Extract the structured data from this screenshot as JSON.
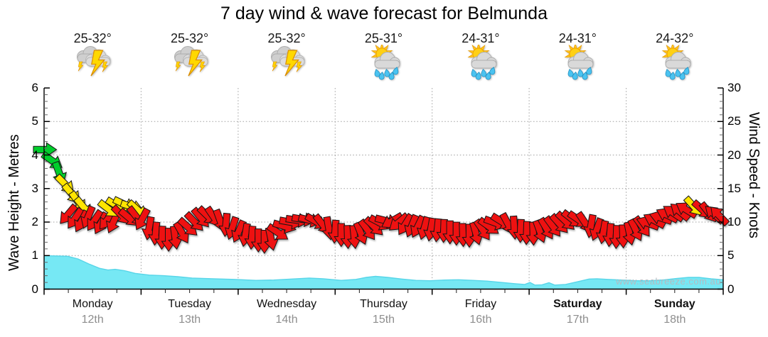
{
  "title": "7 day wind & wave forecast for Belmunda",
  "watermark": "www.seabreeze.com.au",
  "left_axis": {
    "label": "Wave Height - Metres",
    "ticks": [
      0,
      1,
      2,
      3,
      4,
      5,
      6
    ],
    "range": [
      0,
      6
    ]
  },
  "right_axis": {
    "label": "Wind Speed - Knots",
    "ticks": [
      0,
      5,
      10,
      15,
      20,
      25,
      30
    ],
    "range": [
      0,
      30
    ]
  },
  "colors": {
    "wave_fill": "#76E8F4",
    "wave_edge": "#57D5E8",
    "wind_line": "#999999",
    "grid": "#9F9F9F",
    "axis": "#000000",
    "date_grey": "#8E8E8E",
    "watermark_grey": "#B5BBC1",
    "arrow_colors": {
      "g": "#00CE2C",
      "y": "#FFE500",
      "r": "#EE1111"
    }
  },
  "chart_data": {
    "type": "area",
    "x_unit": "hours_from_start",
    "x_range": [
      0,
      168
    ],
    "grid": true,
    "days": [
      {
        "label": "Monday",
        "date": "12th",
        "temp": "25-32°",
        "icon": "storm-icon",
        "bold": false
      },
      {
        "label": "Tuesday",
        "date": "13th",
        "temp": "25-32°",
        "icon": "storm-icon",
        "bold": false
      },
      {
        "label": "Wednesday",
        "date": "14th",
        "temp": "25-32°",
        "icon": "storm-icon",
        "bold": false
      },
      {
        "label": "Thursday",
        "date": "15th",
        "temp": "25-31°",
        "icon": "sun-shower-icon",
        "bold": false
      },
      {
        "label": "Friday",
        "date": "16th",
        "temp": "24-31°",
        "icon": "sun-shower-icon",
        "bold": false
      },
      {
        "label": "Saturday",
        "date": "17th",
        "temp": "24-31°",
        "icon": "sun-shower-icon",
        "bold": true
      },
      {
        "label": "Sunday",
        "date": "18th",
        "temp": "24-32°",
        "icon": "sun-shower-icon",
        "bold": true
      }
    ],
    "wave_height_m": [
      [
        0,
        1.0
      ],
      [
        5.8,
        0.98
      ],
      [
        8.4,
        0.9
      ],
      [
        11.1,
        0.75
      ],
      [
        13.7,
        0.62
      ],
      [
        15.8,
        0.57
      ],
      [
        17.6,
        0.59
      ],
      [
        19.9,
        0.55
      ],
      [
        22.5,
        0.47
      ],
      [
        26,
        0.42
      ],
      [
        29.6,
        0.4
      ],
      [
        33.1,
        0.37
      ],
      [
        36.6,
        0.33
      ],
      [
        41.9,
        0.31
      ],
      [
        47.1,
        0.29
      ],
      [
        52.4,
        0.26
      ],
      [
        56.8,
        0.27
      ],
      [
        61.2,
        0.3
      ],
      [
        65.6,
        0.33
      ],
      [
        69.1,
        0.31
      ],
      [
        73.5,
        0.26
      ],
      [
        77.1,
        0.29
      ],
      [
        79.7,
        0.35
      ],
      [
        82,
        0.38
      ],
      [
        85,
        0.35
      ],
      [
        88.5,
        0.3
      ],
      [
        92,
        0.26
      ],
      [
        95.5,
        0.25
      ],
      [
        99.1,
        0.27
      ],
      [
        102.6,
        0.28
      ],
      [
        106.1,
        0.26
      ],
      [
        109.6,
        0.24
      ],
      [
        113.1,
        0.2
      ],
      [
        116.6,
        0.16
      ],
      [
        118.9,
        0.14
      ],
      [
        120.2,
        0.2
      ],
      [
        121.4,
        0.12
      ],
      [
        123.2,
        0.13
      ],
      [
        124.9,
        0.19
      ],
      [
        126.3,
        0.12
      ],
      [
        129,
        0.14
      ],
      [
        132,
        0.22
      ],
      [
        134.8,
        0.3
      ],
      [
        136.8,
        0.31
      ],
      [
        139.5,
        0.29
      ],
      [
        143,
        0.27
      ],
      [
        146.5,
        0.25
      ],
      [
        150,
        0.25
      ],
      [
        153.6,
        0.28
      ],
      [
        156.6,
        0.32
      ],
      [
        159.4,
        0.35
      ],
      [
        162,
        0.35
      ],
      [
        165,
        0.31
      ],
      [
        168,
        0.28
      ]
    ],
    "wind_speed_knots": [
      [
        0,
        21
      ],
      [
        2,
        19
      ],
      [
        4,
        17
      ],
      [
        6,
        15
      ],
      [
        8,
        13
      ],
      [
        10,
        11.5
      ],
      [
        12,
        10.6
      ],
      [
        14,
        10.2
      ],
      [
        16,
        10.8
      ],
      [
        18,
        11.6
      ],
      [
        20,
        12.2
      ],
      [
        22,
        12.0
      ],
      [
        24,
        11.2
      ],
      [
        26,
        9.6
      ],
      [
        28,
        8.4
      ],
      [
        30,
        7.6
      ],
      [
        32,
        7.8
      ],
      [
        34,
        8.5
      ],
      [
        36,
        9.4
      ],
      [
        38,
        10.3
      ],
      [
        40,
        10.9
      ],
      [
        42,
        10.7
      ],
      [
        44,
        10.2
      ],
      [
        46,
        9.3
      ],
      [
        48,
        8.7
      ],
      [
        50,
        8.2
      ],
      [
        52,
        7.8
      ],
      [
        54,
        7.3
      ],
      [
        56,
        7.5
      ],
      [
        58,
        8.6
      ],
      [
        60,
        9.7
      ],
      [
        62,
        10.2
      ],
      [
        64,
        10.4
      ],
      [
        66,
        10.3
      ],
      [
        68,
        9.9
      ],
      [
        70,
        9.3
      ],
      [
        72,
        8.7
      ],
      [
        74,
        8.1
      ],
      [
        76,
        7.9
      ],
      [
        78,
        8.3
      ],
      [
        80,
        8.9
      ],
      [
        82,
        9.5
      ],
      [
        84,
        10.1
      ],
      [
        86,
        10.2
      ],
      [
        88,
        10.0
      ],
      [
        90,
        9.6
      ],
      [
        92,
        9.4
      ],
      [
        94,
        9.2
      ],
      [
        96,
        9.0
      ],
      [
        98,
        8.9
      ],
      [
        100,
        8.7
      ],
      [
        102,
        8.4
      ],
      [
        104,
        8.2
      ],
      [
        106,
        8.2
      ],
      [
        108,
        8.7
      ],
      [
        110,
        9.4
      ],
      [
        112,
        10.0
      ],
      [
        114,
        9.9
      ],
      [
        116,
        9.4
      ],
      [
        118,
        8.8
      ],
      [
        120,
        8.4
      ],
      [
        122,
        8.6
      ],
      [
        124,
        9.0
      ],
      [
        126,
        9.4
      ],
      [
        128,
        10.0
      ],
      [
        130,
        10.4
      ],
      [
        132,
        10.4
      ],
      [
        134,
        9.9
      ],
      [
        136,
        9.2
      ],
      [
        138,
        8.6
      ],
      [
        140,
        8.2
      ],
      [
        142,
        7.9
      ],
      [
        144,
        8.2
      ],
      [
        146,
        8.8
      ],
      [
        148,
        9.3
      ],
      [
        150,
        9.8
      ],
      [
        152,
        10.4
      ],
      [
        154,
        10.9
      ],
      [
        156,
        11.2
      ],
      [
        158,
        11.5
      ],
      [
        160,
        11.9
      ],
      [
        162,
        12.1
      ],
      [
        164,
        11.7
      ],
      [
        166,
        11.2
      ],
      [
        168,
        10.9
      ]
    ],
    "wind_arrows": [
      [
        0,
        20.8,
        "g",
        0
      ],
      [
        1.9,
        19.2,
        "g",
        35
      ],
      [
        3.7,
        17.4,
        "g",
        70
      ],
      [
        5.1,
        15.7,
        "y",
        45
      ],
      [
        6.7,
        14.3,
        "y",
        50
      ],
      [
        8.3,
        13.1,
        "y",
        55
      ],
      [
        9.7,
        12.3,
        "y",
        50
      ],
      [
        6,
        11.2,
        "r",
        130
      ],
      [
        7.7,
        10.6,
        "r",
        125
      ],
      [
        9.3,
        10.2,
        "r",
        118
      ],
      [
        10.9,
        10.8,
        "r",
        112
      ],
      [
        12.5,
        10.3,
        "r",
        124
      ],
      [
        14.1,
        9.9,
        "r",
        118
      ],
      [
        15.7,
        10.4,
        "r",
        128
      ],
      [
        17.2,
        10.1,
        "r",
        114
      ],
      [
        15.8,
        12.0,
        "y",
        38
      ],
      [
        17.8,
        12.5,
        "y",
        32
      ],
      [
        19.7,
        12.7,
        "y",
        25
      ],
      [
        21.6,
        12.3,
        "y",
        18
      ],
      [
        23,
        11.9,
        "y",
        42
      ],
      [
        19,
        11.1,
        "r",
        46
      ],
      [
        20.9,
        10.7,
        "r",
        40
      ],
      [
        22.7,
        10.9,
        "r",
        52
      ],
      [
        24.3,
        10.5,
        "r",
        118
      ],
      [
        26,
        9.2,
        "r",
        100
      ],
      [
        27.6,
        8.4,
        "r",
        95
      ],
      [
        29.2,
        7.8,
        "r",
        92
      ],
      [
        30.8,
        7.5,
        "r",
        90
      ],
      [
        32.4,
        7.8,
        "r",
        82
      ],
      [
        34,
        8.5,
        "r",
        60
      ],
      [
        35.5,
        9.3,
        "r",
        42
      ],
      [
        37.1,
        10.1,
        "r",
        46
      ],
      [
        38.7,
        10.7,
        "r",
        50
      ],
      [
        40.3,
        11.0,
        "r",
        44
      ],
      [
        41.9,
        10.8,
        "r",
        56
      ],
      [
        43.5,
        10.3,
        "r",
        70
      ],
      [
        45,
        9.7,
        "r",
        95
      ],
      [
        46.6,
        9.2,
        "r",
        108
      ],
      [
        48.2,
        8.7,
        "r",
        114
      ],
      [
        49.8,
        8.2,
        "r",
        100
      ],
      [
        51.4,
        7.8,
        "r",
        94
      ],
      [
        53,
        7.4,
        "r",
        90
      ],
      [
        54.5,
        7.2,
        "r",
        90
      ],
      [
        56.1,
        7.6,
        "r",
        78
      ],
      [
        57.7,
        8.5,
        "r",
        34
      ],
      [
        59.3,
        9.4,
        "r",
        16
      ],
      [
        60.9,
        10.0,
        "r",
        10
      ],
      [
        62.5,
        10.3,
        "r",
        8
      ],
      [
        64,
        10.4,
        "r",
        10
      ],
      [
        65.6,
        10.3,
        "r",
        14
      ],
      [
        67.2,
        10.1,
        "r",
        30
      ],
      [
        68.8,
        9.7,
        "r",
        52
      ],
      [
        70.4,
        9.2,
        "r",
        80
      ],
      [
        72,
        8.7,
        "r",
        94
      ],
      [
        73.5,
        8.2,
        "r",
        90
      ],
      [
        75.1,
        7.9,
        "r",
        88
      ],
      [
        76.7,
        7.9,
        "r",
        84
      ],
      [
        78.3,
        8.4,
        "r",
        68
      ],
      [
        79.9,
        8.9,
        "r",
        54
      ],
      [
        81.5,
        9.4,
        "r",
        44
      ],
      [
        83,
        9.9,
        "r",
        28
      ],
      [
        84.6,
        10.2,
        "r",
        14
      ],
      [
        86.2,
        10.2,
        "r",
        150
      ],
      [
        87.8,
        10.0,
        "r",
        140
      ],
      [
        89.4,
        9.7,
        "r",
        122
      ],
      [
        91,
        9.5,
        "r",
        112
      ],
      [
        92.5,
        9.4,
        "r",
        116
      ],
      [
        94.1,
        9.2,
        "r",
        106
      ],
      [
        95.7,
        9.0,
        "r",
        100
      ],
      [
        97.3,
        8.9,
        "r",
        96
      ],
      [
        98.9,
        8.8,
        "r",
        92
      ],
      [
        100.4,
        8.6,
        "r",
        90
      ],
      [
        102,
        8.4,
        "r",
        90
      ],
      [
        103.6,
        8.2,
        "r",
        88
      ],
      [
        105.2,
        8.1,
        "r",
        90
      ],
      [
        106.8,
        8.4,
        "r",
        74
      ],
      [
        108.4,
        8.9,
        "r",
        56
      ],
      [
        109.9,
        9.4,
        "r",
        36
      ],
      [
        111.5,
        9.9,
        "r",
        20
      ],
      [
        113.1,
        10.1,
        "r",
        32
      ],
      [
        114.7,
        9.8,
        "r",
        62
      ],
      [
        116.3,
        9.3,
        "r",
        86
      ],
      [
        117.9,
        8.8,
        "r",
        92
      ],
      [
        119.4,
        8.5,
        "r",
        92
      ],
      [
        121,
        8.4,
        "r",
        88
      ],
      [
        122.6,
        8.7,
        "r",
        70
      ],
      [
        124.2,
        9.1,
        "r",
        60
      ],
      [
        125.8,
        9.4,
        "r",
        54
      ],
      [
        127.4,
        9.8,
        "r",
        48
      ],
      [
        128.9,
        10.2,
        "r",
        44
      ],
      [
        130.5,
        10.5,
        "r",
        38
      ],
      [
        132.1,
        10.4,
        "r",
        34
      ],
      [
        133.7,
        10.0,
        "r",
        56
      ],
      [
        135.3,
        9.5,
        "r",
        100
      ],
      [
        136.8,
        9.0,
        "r",
        110
      ],
      [
        138.4,
        8.6,
        "r",
        100
      ],
      [
        140,
        8.2,
        "r",
        95
      ],
      [
        141.6,
        7.9,
        "r",
        92
      ],
      [
        143.2,
        8.0,
        "r",
        88
      ],
      [
        144.8,
        8.4,
        "r",
        78
      ],
      [
        146.3,
        8.9,
        "r",
        64
      ],
      [
        147.9,
        9.4,
        "r",
        54
      ],
      [
        149.5,
        9.8,
        "r",
        200
      ],
      [
        151.1,
        10.2,
        "r",
        208
      ],
      [
        152.7,
        10.6,
        "r",
        198
      ],
      [
        154.3,
        11.0,
        "r",
        206
      ],
      [
        155.8,
        11.3,
        "r",
        214
      ],
      [
        157.4,
        11.5,
        "r",
        220
      ],
      [
        159,
        11.8,
        "r",
        212
      ],
      [
        160.6,
        12.4,
        "y",
        48
      ],
      [
        162.7,
        11.9,
        "r",
        42
      ],
      [
        164.3,
        11.5,
        "r",
        52
      ],
      [
        165.9,
        11.1,
        "r",
        222
      ],
      [
        167.1,
        10.9,
        "r",
        226
      ]
    ]
  }
}
